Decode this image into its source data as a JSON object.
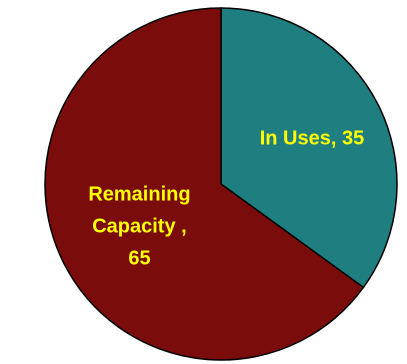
{
  "chart_data": {
    "type": "pie",
    "title": "",
    "slices": [
      {
        "label": "In Uses",
        "value": 35,
        "color": "#1f7f80",
        "label_lines": [
          "In Uses, 35"
        ]
      },
      {
        "label": "Remaining Capacity",
        "value": 65,
        "color": "#7b0c0c",
        "label_lines": [
          "Remaining",
          "Capacity ,",
          "65"
        ]
      }
    ],
    "label_color": "#ffff00",
    "legend": "none"
  }
}
